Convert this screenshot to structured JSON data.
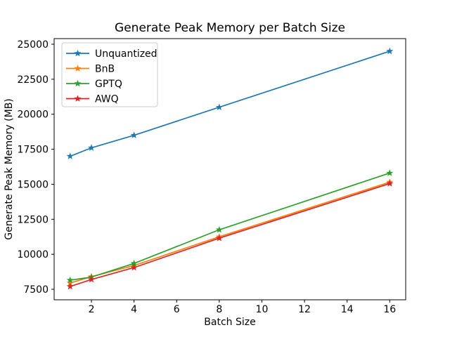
{
  "chart_data": {
    "type": "line",
    "title": "Generate Peak Memory per Batch Size",
    "xlabel": "Batch Size",
    "ylabel": "Generate Peak Memory (MB)",
    "x": [
      1,
      2,
      4,
      8,
      16
    ],
    "series": [
      {
        "name": "Unquantized",
        "color": "#1f77b4",
        "values": [
          17000,
          17600,
          18500,
          20500,
          24500
        ]
      },
      {
        "name": "BnB",
        "color": "#ff7f0e",
        "values": [
          7950,
          8400,
          9200,
          11250,
          15150
        ]
      },
      {
        "name": "GPTQ",
        "color": "#2ca02c",
        "values": [
          8150,
          8370,
          9350,
          11750,
          15800
        ]
      },
      {
        "name": "AWQ",
        "color": "#d62728",
        "values": [
          7700,
          8200,
          9050,
          11150,
          15050
        ]
      }
    ],
    "xticks": [
      2,
      4,
      6,
      8,
      10,
      12,
      14,
      16
    ],
    "yticks": [
      7500,
      10000,
      12500,
      15000,
      17500,
      20000,
      22500,
      25000
    ],
    "xlim": [
      0.25,
      16.75
    ],
    "ylim": [
      6750,
      25400
    ],
    "marker": "star",
    "grid": false,
    "legend_position": "upper left",
    "axis_color": "#000000",
    "legend_border_color": "#cccccc",
    "background_color": "#ffffff"
  }
}
